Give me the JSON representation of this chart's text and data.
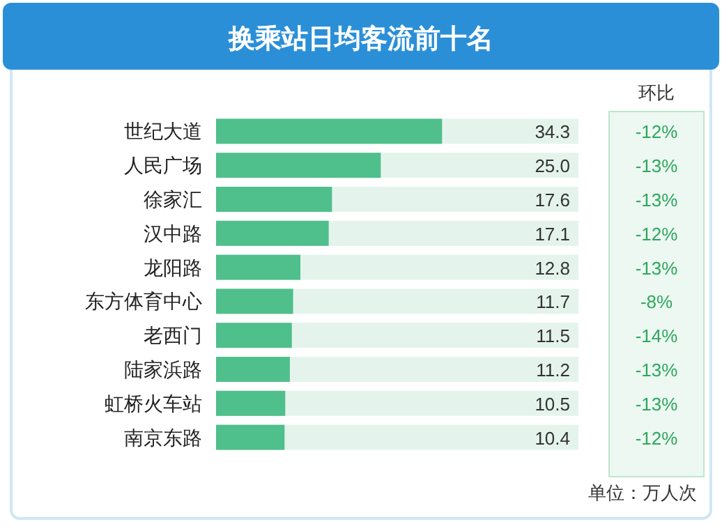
{
  "chart_data": [
    {
      "type": "bar",
      "orientation": "horizontal",
      "title": "换乘站日均客流前十名",
      "categories": [
        "世纪大道",
        "人民广场",
        "徐家汇",
        "汉中路",
        "龙阳路",
        "东方体育中心",
        "老西门",
        "陆家浜路",
        "虹桥火车站",
        "南京东路"
      ],
      "values": [
        34.3,
        25.0,
        17.6,
        17.1,
        12.8,
        11.7,
        11.5,
        11.2,
        10.5,
        10.4
      ],
      "value_labels": [
        "34.3",
        "25.0",
        "17.6",
        "17.1",
        "12.8",
        "11.7",
        "11.5",
        "11.2",
        "10.5",
        "10.4"
      ],
      "color": "#4fbf8c",
      "xlim": [
        0,
        55
      ],
      "annotations": [
        "单位：万人次"
      ]
    },
    {
      "type": "other",
      "title": "环比",
      "annotations": [
        "-12%",
        "-13%",
        "-13%",
        "-12%",
        "-13%",
        "-8%",
        "-14%",
        "-13%",
        "-13%",
        "-12%"
      ]
    }
  ]
}
